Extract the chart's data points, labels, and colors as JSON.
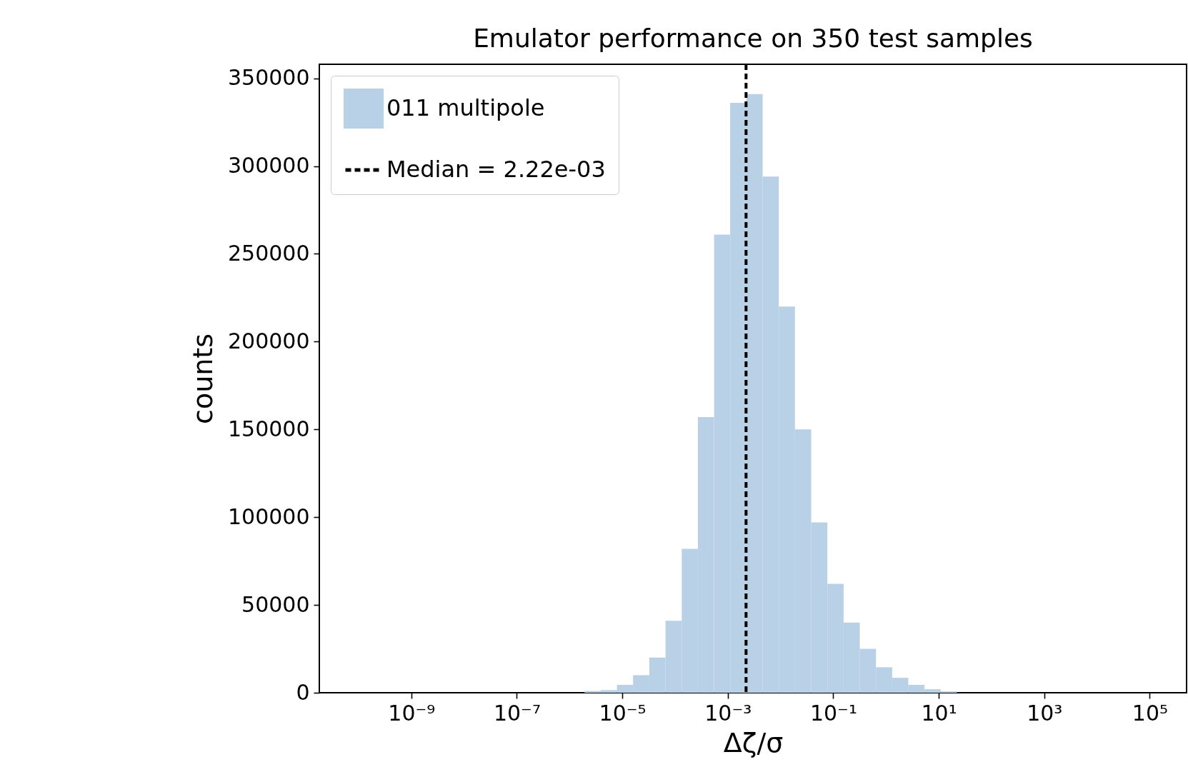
{
  "chart_data": {
    "type": "histogram",
    "title": "Emulator performance on 350 test samples",
    "xlabel": "Δζ/σ",
    "ylabel": "counts",
    "bins": [
      1.92e-06,
      3.9e-06,
      7.91e-06,
      1.6e-05,
      3.25e-05,
      6.59e-05,
      0.000134,
      0.000271,
      0.00055,
      0.00111,
      0.00226,
      0.00458,
      0.00929,
      0.0188,
      0.0382,
      0.0774,
      0.157,
      0.318,
      0.646,
      1.31,
      2.65,
      5.38,
      10.9,
      22.1
    ],
    "series": [
      {
        "name": "011 multipole",
        "color": "#b9d1e6",
        "values": [
          1000,
          1500,
          4500,
          10000,
          20000,
          41000,
          82000,
          157000,
          261000,
          336000,
          341000,
          294000,
          220000,
          150000,
          97000,
          62000,
          40000,
          25000,
          14500,
          8500,
          4500,
          2000,
          800
        ]
      }
    ],
    "log": "x",
    "xlim": [
      1.8e-11,
      500000.0
    ],
    "xticks": [
      {
        "value": 1e-09,
        "label": "10⁻⁹"
      },
      {
        "value": 1e-07,
        "label": "10⁻⁷"
      },
      {
        "value": 1e-05,
        "label": "10⁻⁵"
      },
      {
        "value": 0.001,
        "label": "10⁻³"
      },
      {
        "value": 0.1,
        "label": "10⁻¹"
      },
      {
        "value": 10,
        "label": "10¹"
      },
      {
        "value": 1000,
        "label": "10³"
      },
      {
        "value": 100000,
        "label": "10⁵"
      }
    ],
    "ylim": [
      0,
      358000
    ],
    "yticks": [
      0,
      50000,
      100000,
      150000,
      200000,
      250000,
      300000,
      350000
    ],
    "ref_lines": [
      {
        "axis": "x",
        "value": 0.00222,
        "label": "Median = 2.22e-03",
        "color": "#000000",
        "line_style": "dashed"
      }
    ],
    "legend": "top left",
    "grid": false
  }
}
